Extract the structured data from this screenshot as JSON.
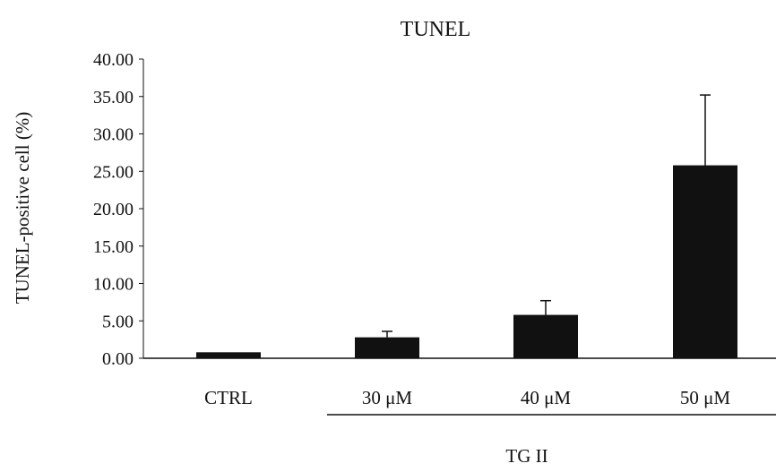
{
  "chart_data": {
    "type": "bar",
    "title": "TUNEL",
    "xlabel": "",
    "ylabel": "TUNEL-positive cell (%)",
    "categories": [
      "CTRL",
      "30 μM",
      "40 μM",
      "50 μM"
    ],
    "values": [
      0.8,
      2.8,
      5.8,
      25.8
    ],
    "error_plus": [
      0.0,
      0.8,
      1.9,
      9.4
    ],
    "ylim": [
      0,
      40
    ],
    "yticks": [
      "0.00",
      "5.00",
      "10.00",
      "15.00",
      "20.00",
      "25.00",
      "30.00",
      "35.00",
      "40.00"
    ],
    "group_label": "TG II",
    "group_members": [
      "30 μM",
      "40 μM",
      "50 μM"
    ],
    "bar_color": "#111111",
    "grid": false,
    "legend": "none"
  }
}
